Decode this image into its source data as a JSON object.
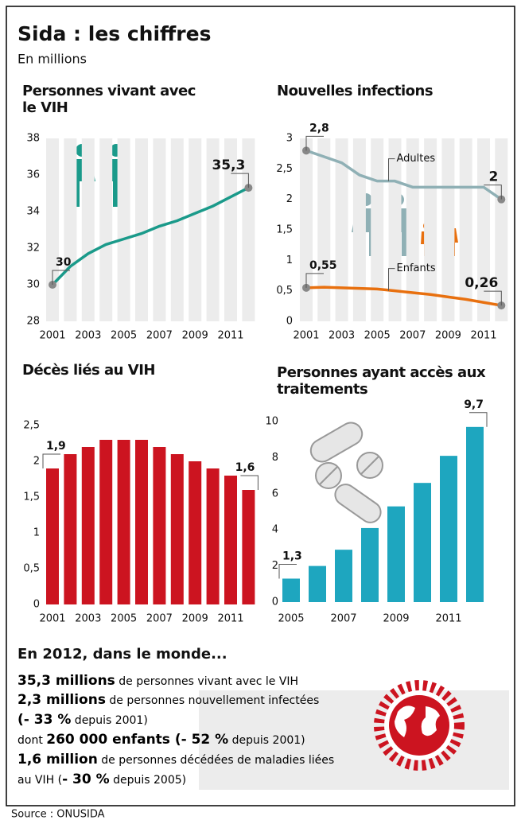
{
  "header": {
    "title": "Sida : les chiffres",
    "subtitle": "En millions"
  },
  "chart_data": [
    {
      "type": "line",
      "title": "Personnes vivant avec le VIH",
      "categories": [
        "2001",
        null,
        "2003",
        null,
        "2005",
        null,
        "2007",
        null,
        "2009",
        null,
        "2011",
        null
      ],
      "values": [
        30,
        31,
        31.7,
        32.2,
        32.5,
        32.8,
        33.2,
        33.5,
        33.9,
        34.3,
        34.8,
        35.3
      ],
      "value_labels": [
        "30",
        null,
        null,
        null,
        null,
        null,
        null,
        null,
        null,
        null,
        null,
        "35,3"
      ],
      "color": "#1a9a8a",
      "ylim": [
        28,
        38
      ],
      "yticks": [
        28,
        30,
        32,
        34,
        36,
        38
      ]
    },
    {
      "type": "line",
      "title": "Nouvelles infections",
      "categories": [
        "2001",
        null,
        "2003",
        null,
        "2005",
        null,
        "2007",
        null,
        "2009",
        null,
        "2011",
        null
      ],
      "series": [
        {
          "name": "Adultes",
          "color": "#8fb0b5",
          "values": [
            2.8,
            2.7,
            2.6,
            2.4,
            2.3,
            2.3,
            2.2,
            2.2,
            2.2,
            2.2,
            2.2,
            2.0
          ],
          "value_labels": [
            "2,8",
            null,
            null,
            null,
            null,
            null,
            null,
            null,
            null,
            null,
            null,
            "2"
          ]
        },
        {
          "name": "Enfants",
          "color": "#e8700f",
          "values": [
            0.55,
            0.56,
            0.55,
            0.54,
            0.53,
            0.5,
            0.47,
            0.44,
            0.4,
            0.36,
            0.31,
            0.26
          ],
          "value_labels": [
            "0,55",
            null,
            null,
            null,
            null,
            null,
            null,
            null,
            null,
            null,
            null,
            "0,26"
          ]
        }
      ],
      "ylim": [
        0,
        3
      ],
      "yticks": [
        0,
        {
          "value": 0.5,
          "label": "0,5"
        },
        1,
        {
          "value": 1.5,
          "label": "1,5"
        },
        2,
        {
          "value": 2.5,
          "label": "2,5"
        },
        3
      ]
    },
    {
      "type": "bar",
      "title": "Décès liés au VIH",
      "categories": [
        "2001",
        null,
        "2003",
        null,
        "2005",
        null,
        "2007",
        null,
        "2009",
        null,
        "2011",
        null
      ],
      "values": [
        1.9,
        2.1,
        2.2,
        2.3,
        2.3,
        2.3,
        2.2,
        2.1,
        2.0,
        1.9,
        1.8,
        1.6
      ],
      "value_labels": [
        "1,9",
        null,
        null,
        null,
        null,
        null,
        null,
        null,
        null,
        null,
        null,
        "1,6"
      ],
      "color": "#cc1420",
      "ylim": [
        0,
        2.5
      ],
      "yticks": [
        0,
        {
          "value": 0.5,
          "label": "0,5"
        },
        1,
        {
          "value": 1.5,
          "label": "1,5"
        },
        2,
        {
          "value": 2.5,
          "label": "2,5"
        }
      ]
    },
    {
      "type": "bar",
      "title": "Personnes ayant accès aux traitements",
      "categories": [
        "2005",
        null,
        "2007",
        null,
        "2009",
        null,
        "2011",
        null
      ],
      "values": [
        1.3,
        2.0,
        2.9,
        4.1,
        5.3,
        6.6,
        8.1,
        9.7
      ],
      "value_labels": [
        "1,3",
        null,
        null,
        null,
        null,
        null,
        null,
        "9,7"
      ],
      "color": "#1ea6bf",
      "ylim": [
        0,
        10
      ],
      "yticks": [
        0,
        2,
        4,
        6,
        8,
        10
      ]
    }
  ],
  "summary": {
    "title": "En 2012, dans le monde...",
    "lines": [
      [
        {
          "text": "35,3 millions",
          "bold": true
        },
        {
          "text": " de personnes vivant avec le VIH",
          "bold": false
        }
      ],
      [
        {
          "text": "2,3 millions",
          "bold": true
        },
        {
          "text": " de personnes nouvellement infectées",
          "bold": false
        }
      ],
      [
        {
          "text": "(- 33 %",
          "bold": true
        },
        {
          "text": " depuis 2001)",
          "bold": false
        }
      ],
      [
        {
          "text": "dont ",
          "bold": false
        },
        {
          "text": "260 000 enfants",
          "bold": true
        },
        {
          "text": " (- 52 %",
          "bold": true
        },
        {
          "text": " depuis 2001)",
          "bold": false
        }
      ],
      [
        {
          "text": "1,6 million",
          "bold": true
        },
        {
          "text": " de personnes décédées de maladies liées",
          "bold": false
        }
      ],
      [
        {
          "text": "au VIH (",
          "bold": false
        },
        {
          "text": "- 30 %",
          "bold": true
        },
        {
          "text": " depuis 2005)",
          "bold": false
        }
      ]
    ]
  },
  "source": "Source : ONUSIDA"
}
